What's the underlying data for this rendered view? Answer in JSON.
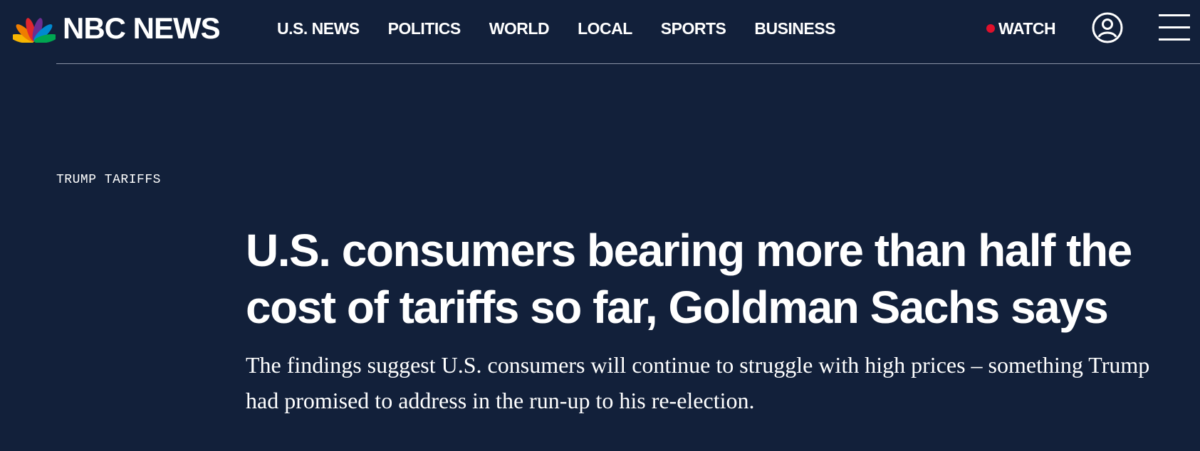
{
  "header": {
    "logo_text": "NBC NEWS",
    "nav": [
      {
        "label": "U.S. NEWS"
      },
      {
        "label": "POLITICS"
      },
      {
        "label": "WORLD"
      },
      {
        "label": "LOCAL"
      },
      {
        "label": "SPORTS"
      },
      {
        "label": "BUSINESS"
      }
    ],
    "watch_label": "WATCH",
    "icons": {
      "logo": "nbc-peacock-icon",
      "live": "live-dot-icon",
      "account": "account-icon",
      "menu": "hamburger-menu-icon"
    }
  },
  "article": {
    "eyebrow": "TRUMP TARIFFS",
    "headline": "U.S. consumers bearing more than half the cost of tariffs so far, Goldman Sachs says",
    "dek": "The findings suggest U.S. consumers will continue to struggle with high prices – something Trump had promised to address in the run-up to his re-election."
  },
  "colors": {
    "background": "#12203a",
    "text": "#ffffff",
    "live_dot": "#e0102b",
    "peacock": [
      "#f7b500",
      "#ef7d00",
      "#e1262d",
      "#6c2d91",
      "#0089cf",
      "#00a651"
    ]
  }
}
